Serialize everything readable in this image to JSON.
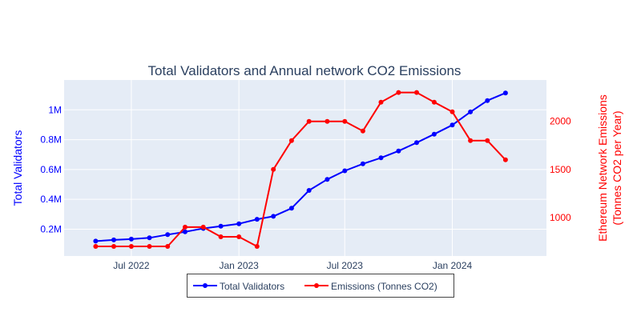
{
  "chart_data": {
    "type": "line",
    "title": "Total Validators and Annual network CO2 Emissions",
    "x_ticks": [
      "Jul 2022",
      "Jan 2023",
      "Jul 2023",
      "Jan 2024"
    ],
    "x_tick_values": [
      "2022-07-01",
      "2023-01-01",
      "2023-07-01",
      "2024-01-01"
    ],
    "x_range": [
      "2022-03-08",
      "2024-06-10"
    ],
    "x": [
      "2022-05-01",
      "2022-06-01",
      "2022-07-01",
      "2022-08-01",
      "2022-09-01",
      "2022-10-01",
      "2022-11-01",
      "2022-12-01",
      "2023-01-01",
      "2023-02-01",
      "2023-03-01",
      "2023-04-01",
      "2023-05-01",
      "2023-06-01",
      "2023-07-01",
      "2023-08-01",
      "2023-09-01",
      "2023-10-01",
      "2023-11-01",
      "2023-12-01",
      "2024-01-01",
      "2024-02-01",
      "2024-03-01",
      "2024-04-01"
    ],
    "y_left": {
      "label": "Total Validators",
      "color": "#0000ff",
      "range": [
        20000,
        1200000
      ],
      "ticks": [
        200000,
        400000,
        600000,
        800000,
        1000000
      ],
      "tick_labels": [
        "0.2M",
        "0.4M",
        "0.6M",
        "0.8M",
        "1M"
      ]
    },
    "y_right": {
      "label_lines": [
        "Ethereum Network Emissions",
        "(Tonnes CO2 per Year)"
      ],
      "color": "#ff0000",
      "range": [
        600,
        2430
      ],
      "ticks": [
        1000,
        1500,
        2000
      ],
      "tick_labels": [
        "1000",
        "1500",
        "2000"
      ]
    },
    "series": [
      {
        "name": "Total Validators",
        "axis": "left",
        "color": "#0000ff",
        "values": [
          120000,
          128000,
          133000,
          142000,
          163000,
          182000,
          205000,
          220000,
          236000,
          266000,
          286000,
          340000,
          460000,
          534000,
          591000,
          638000,
          678000,
          724000,
          780000,
          837000,
          898000,
          986000,
          1062000,
          1113000
        ]
      },
      {
        "name": "Emissions (Tonnes CO2)",
        "axis": "right",
        "color": "#ff0000",
        "values": [
          700,
          700,
          700,
          700,
          700,
          900,
          900,
          800,
          800,
          700,
          1500,
          1800,
          2000,
          2000,
          2000,
          1900,
          2200,
          2300,
          2300,
          2200,
          2100,
          1800,
          1800,
          1600
        ]
      }
    ],
    "legend": {
      "position": "bottom-center",
      "entries": [
        "Total Validators",
        "Emissions (Tonnes CO2)"
      ]
    },
    "grid": true,
    "plot_background": "#e5ecf6"
  }
}
